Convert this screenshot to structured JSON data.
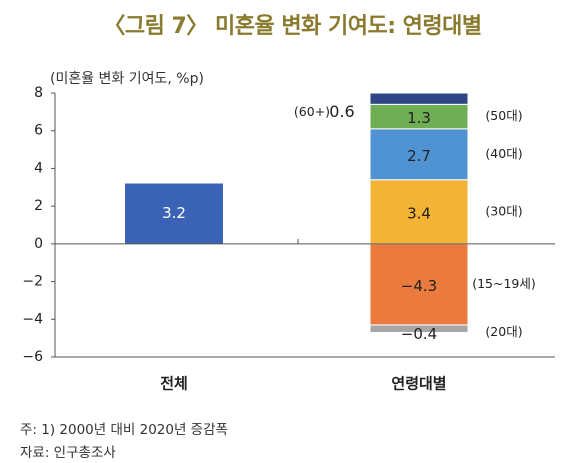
{
  "title": "〈그림 7〉 미혼율 변화 기여도: 연령대별",
  "unit_label": "(미혼율 변화 기여도, %p)",
  "notes": {
    "note1": "주: 1) 2000년 대비 2020년 증감폭",
    "note2": "자료: 인구총조사"
  },
  "chart_data": {
    "type": "bar",
    "stacked": true,
    "title": "〈그림 7〉 미혼율 변화 기여도: 연령대별",
    "ylabel": "(미혼율 변화 기여도, %p)",
    "ylim": [
      -6,
      8
    ],
    "yticks": [
      "8",
      "6",
      "4",
      "2",
      "0",
      "−2",
      "−4",
      "−6"
    ],
    "ytick_values": [
      8,
      6,
      4,
      2,
      0,
      -2,
      -4,
      -6
    ],
    "categories": [
      "전체",
      "연령대별"
    ],
    "total": {
      "category": "전체",
      "value": 3.2,
      "label": "3.2",
      "color": "#3b63b5"
    },
    "series": [
      {
        "name": "(30대)",
        "value": 3.4,
        "label": "3.4",
        "color": "#f3b335"
      },
      {
        "name": "(40대)",
        "value": 2.7,
        "label": "2.7",
        "color": "#4f93d2"
      },
      {
        "name": "(50대)",
        "value": 1.3,
        "label": "1.3",
        "color": "#6fae55"
      },
      {
        "name": "(60+)",
        "value": 0.6,
        "label": "0.6",
        "color": "#2e4686"
      },
      {
        "name": "(15~19세)",
        "value": -4.3,
        "label": "−4.3",
        "color": "#ea7a3e"
      },
      {
        "name": "(20대)",
        "value": -0.4,
        "label": "−0.4",
        "color": "#a6a6a6"
      }
    ]
  }
}
